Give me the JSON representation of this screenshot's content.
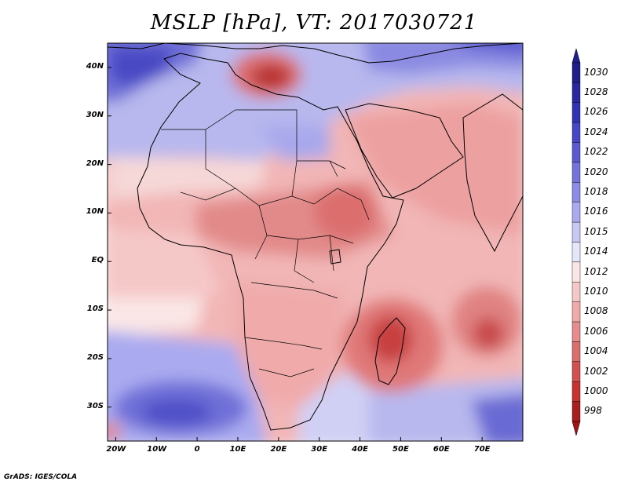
{
  "title": "MSLP [hPa], VT: 2017030721",
  "credit": "GrADS: IGES/COLA",
  "map": {
    "variable": "MSLP",
    "units": "hPa",
    "valid_time": "2017030721",
    "lon_range": [
      -22,
      80
    ],
    "lat_range": [
      -37,
      45
    ],
    "lat_labels": [
      {
        "lat": 40,
        "text": "40N"
      },
      {
        "lat": 30,
        "text": "30N"
      },
      {
        "lat": 20,
        "text": "20N"
      },
      {
        "lat": 10,
        "text": "10N"
      },
      {
        "lat": 0,
        "text": "EQ"
      },
      {
        "lat": -10,
        "text": "10S"
      },
      {
        "lat": -20,
        "text": "20S"
      },
      {
        "lat": -30,
        "text": "30S"
      }
    ],
    "lon_labels": [
      {
        "lon": -20,
        "text": "20W"
      },
      {
        "lon": -10,
        "text": "10W"
      },
      {
        "lon": 0,
        "text": "0"
      },
      {
        "lon": 10,
        "text": "10E"
      },
      {
        "lon": 20,
        "text": "20E"
      },
      {
        "lon": 30,
        "text": "30E"
      },
      {
        "lon": 40,
        "text": "40E"
      },
      {
        "lon": 50,
        "text": "50E"
      },
      {
        "lon": 60,
        "text": "60E"
      },
      {
        "lon": 70,
        "text": "70E"
      }
    ]
  },
  "colorbar": {
    "levels": [
      {
        "label": "1030",
        "color": "#1e1e8c"
      },
      {
        "label": "1028",
        "color": "#2828a0"
      },
      {
        "label": "1026",
        "color": "#3232b4"
      },
      {
        "label": "1024",
        "color": "#4646c8"
      },
      {
        "label": "1022",
        "color": "#5a5ad2"
      },
      {
        "label": "1020",
        "color": "#7373dc"
      },
      {
        "label": "1018",
        "color": "#8c8ce6"
      },
      {
        "label": "1016",
        "color": "#aaaaf0"
      },
      {
        "label": "1015",
        "color": "#c8c8f5"
      },
      {
        "label": "1014",
        "color": "#e6e6fa"
      },
      {
        "label": "1012",
        "color": "#fae6e6"
      },
      {
        "label": "1010",
        "color": "#f5c8c8"
      },
      {
        "label": "1008",
        "color": "#f0aaaa"
      },
      {
        "label": "1006",
        "color": "#e68c8c"
      },
      {
        "label": "1004",
        "color": "#dc6e6e"
      },
      {
        "label": "1002",
        "color": "#d25050"
      },
      {
        "label": "1000",
        "color": "#c83232"
      },
      {
        "label": "998",
        "color": "#aa1e1e"
      }
    ],
    "top_arrow_color": "#1e1e8c",
    "bottom_arrow_color": "#a01414"
  }
}
